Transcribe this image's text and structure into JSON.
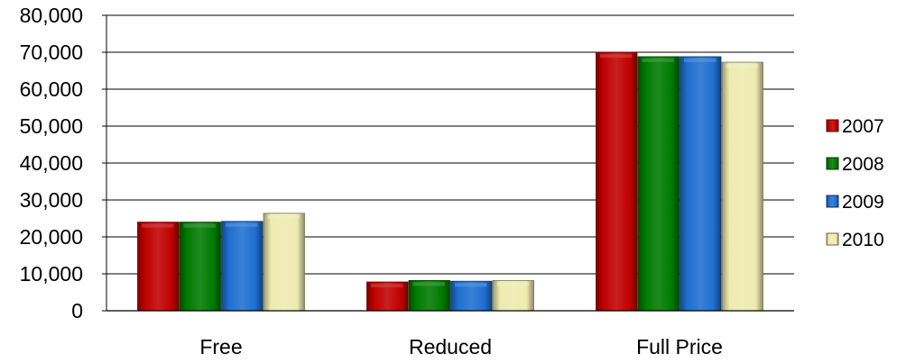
{
  "chart_data": {
    "type": "bar",
    "title": "",
    "xlabel": "",
    "ylabel": "",
    "categories": [
      "Free",
      "Reduced",
      "Full Price"
    ],
    "series": [
      {
        "name": "2007",
        "color": "#C00000",
        "values": [
          24000,
          7800,
          70000
        ]
      },
      {
        "name": "2008",
        "color": "#007A00",
        "values": [
          24000,
          8200,
          68800
        ]
      },
      {
        "name": "2009",
        "color": "#1F6FD0",
        "values": [
          24200,
          8000,
          68800
        ]
      },
      {
        "name": "2010",
        "color": "#EEEBB0",
        "values": [
          26400,
          8200,
          67300
        ]
      }
    ],
    "ylim": [
      0,
      80000
    ],
    "y_ticks": [
      0,
      10000,
      20000,
      30000,
      40000,
      50000,
      60000,
      70000,
      80000
    ],
    "y_tick_labels": [
      "0",
      "10,000",
      "20,000",
      "30,000",
      "40,000",
      "50,000",
      "60,000",
      "70,000",
      "80,000"
    ],
    "grid": true,
    "legend_position": "right"
  }
}
